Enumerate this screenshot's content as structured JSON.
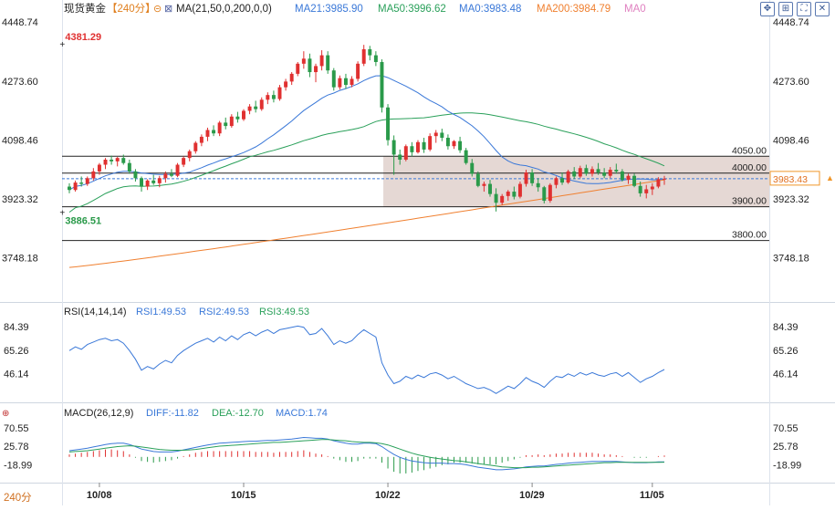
{
  "header": {
    "instrument": "现货黄金",
    "period": "【240分】",
    "ma_label": "MA(21,50,0,200,0,0)",
    "ma21": "MA21:3985.90",
    "ma50": "MA50:3996.62",
    "ma0": "MA0:3983.48",
    "ma200": "MA200:3984.79",
    "ma0b": "MA0"
  },
  "rsi_header": {
    "label": "RSI(14,14,14)",
    "rsi1": "RSI1:49.53",
    "rsi2": "RSI2:49.53",
    "rsi3": "RSI3:49.53"
  },
  "macd_header": {
    "label": "MACD(26,12,9)",
    "diff": "DIFF:-11.82",
    "dea": "DEA:-12.70",
    "macd": "MACD:1.74"
  },
  "bottom_left": "240分",
  "toolbar": {
    "items": [
      "crosshair-icon",
      "zoom-fit-icon",
      "expand-icon",
      "close-icon"
    ]
  },
  "colors": {
    "up": "#e03030",
    "down": "#2a9a4a",
    "ma21": "#3a78d8",
    "ma50": "#2aa05a",
    "ma200": "#f08030",
    "zone": "#dccbc6",
    "price_tag": "#f0962a",
    "peak_label": "#e03030",
    "trough_label": "#2a9a4a"
  },
  "chart_data": [
    {
      "type": "candlestick",
      "title": "现货黄金【240分】",
      "x_ticks": [
        "10/08",
        "10/15",
        "10/22",
        "10/29",
        "11/05"
      ],
      "y_ticks": [
        "4448.74",
        "4273.60",
        "4098.46",
        "3923.32",
        "3748.18"
      ],
      "ylim": [
        3620,
        4460
      ],
      "last_price": "3983.43",
      "peak": {
        "label": "4381.29",
        "value": 4381.29
      },
      "trough": {
        "label": "3886.51",
        "value": 3886.51
      },
      "levels": [
        {
          "label": "4050.00",
          "value": 4050
        },
        {
          "label": "4000.00",
          "value": 4000
        },
        {
          "label": "3900.00",
          "value": 3900
        },
        {
          "label": "3800.00",
          "value": 3800
        }
      ],
      "ohlc": [
        [
          3960,
          3970,
          3940,
          3950
        ],
        [
          3950,
          3978,
          3945,
          3972
        ],
        [
          3972,
          3990,
          3960,
          3968
        ],
        [
          3968,
          3990,
          3962,
          3985
        ],
        [
          3985,
          4015,
          3978,
          4005
        ],
        [
          4005,
          4030,
          3995,
          4025
        ],
        [
          4025,
          4045,
          4012,
          4040
        ],
        [
          4040,
          4052,
          4025,
          4035
        ],
        [
          4035,
          4048,
          4020,
          4045
        ],
        [
          4045,
          4055,
          4025,
          4030
        ],
        [
          4030,
          4040,
          3998,
          4005
        ],
        [
          4005,
          4012,
          3975,
          3985
        ],
        [
          3985,
          3990,
          3945,
          3960
        ],
        [
          3960,
          3982,
          3950,
          3978
        ],
        [
          3978,
          3995,
          3965,
          3970
        ],
        [
          3970,
          3992,
          3958,
          3985
        ],
        [
          3985,
          4005,
          3972,
          3998
        ],
        [
          3998,
          4012,
          3988,
          3992
        ],
        [
          3992,
          4030,
          3988,
          4025
        ],
        [
          4025,
          4050,
          4018,
          4045
        ],
        [
          4045,
          4070,
          4035,
          4065
        ],
        [
          4065,
          4095,
          4058,
          4090
        ],
        [
          4090,
          4115,
          4080,
          4108
        ],
        [
          4108,
          4135,
          4095,
          4128
        ],
        [
          4128,
          4142,
          4110,
          4118
        ],
        [
          4118,
          4155,
          4110,
          4150
        ],
        [
          4150,
          4165,
          4130,
          4140
        ],
        [
          4140,
          4175,
          4135,
          4168
        ],
        [
          4168,
          4182,
          4150,
          4160
        ],
        [
          4160,
          4190,
          4155,
          4185
        ],
        [
          4185,
          4205,
          4175,
          4198
        ],
        [
          4198,
          4215,
          4180,
          4190
        ],
        [
          4190,
          4225,
          4185,
          4218
        ],
        [
          4218,
          4240,
          4205,
          4232
        ],
        [
          4232,
          4245,
          4210,
          4220
        ],
        [
          4220,
          4262,
          4215,
          4255
        ],
        [
          4255,
          4280,
          4245,
          4272
        ],
        [
          4272,
          4300,
          4262,
          4295
        ],
        [
          4295,
          4330,
          4288,
          4325
        ],
        [
          4325,
          4362,
          4310,
          4340
        ],
        [
          4340,
          4355,
          4285,
          4300
        ],
        [
          4300,
          4325,
          4270,
          4318
        ],
        [
          4318,
          4365,
          4305,
          4350
        ],
        [
          4350,
          4362,
          4295,
          4305
        ],
        [
          4305,
          4312,
          4245,
          4255
        ],
        [
          4255,
          4290,
          4248,
          4282
        ],
        [
          4282,
          4295,
          4250,
          4262
        ],
        [
          4262,
          4288,
          4255,
          4280
        ],
        [
          4280,
          4332,
          4272,
          4325
        ],
        [
          4325,
          4381,
          4318,
          4368
        ],
        [
          4368,
          4378,
          4335,
          4350
        ],
        [
          4350,
          4362,
          4318,
          4330
        ],
        [
          4330,
          4338,
          4180,
          4195
        ],
        [
          4195,
          4205,
          4082,
          4098
        ],
        [
          4098,
          4112,
          3995,
          4055
        ],
        [
          4055,
          4070,
          4025,
          4040
        ],
        [
          4040,
          4085,
          4035,
          4080
        ],
        [
          4080,
          4092,
          4050,
          4062
        ],
        [
          4062,
          4098,
          4058,
          4092
        ],
        [
          4092,
          4105,
          4060,
          4070
        ],
        [
          4070,
          4118,
          4065,
          4110
        ],
        [
          4110,
          4128,
          4090,
          4120
        ],
        [
          4120,
          4132,
          4095,
          4105
        ],
        [
          4105,
          4115,
          4070,
          4080
        ],
        [
          4080,
          4098,
          4072,
          4095
        ],
        [
          4095,
          4108,
          4060,
          4068
        ],
        [
          4068,
          4075,
          4025,
          4030
        ],
        [
          4030,
          4042,
          3990,
          3998
        ],
        [
          3998,
          4005,
          3958,
          3962
        ],
        [
          3962,
          3975,
          3945,
          3968
        ],
        [
          3968,
          3980,
          3930,
          3938
        ],
        [
          3938,
          3955,
          3886,
          3912
        ],
        [
          3912,
          3938,
          3905,
          3932
        ],
        [
          3932,
          3950,
          3918,
          3945
        ],
        [
          3945,
          3960,
          3922,
          3930
        ],
        [
          3930,
          3975,
          3925,
          3968
        ],
        [
          3968,
          4010,
          3960,
          4002
        ],
        [
          4002,
          4012,
          3962,
          3970
        ],
        [
          3970,
          3985,
          3945,
          3958
        ],
        [
          3958,
          3962,
          3910,
          3918
        ],
        [
          3918,
          3970,
          3912,
          3965
        ],
        [
          3965,
          3990,
          3955,
          3985
        ],
        [
          3985,
          4002,
          3965,
          3972
        ],
        [
          3972,
          4010,
          3968,
          4005
        ],
        [
          4005,
          4018,
          3982,
          3990
        ],
        [
          3990,
          4022,
          3985,
          4015
        ],
        [
          4015,
          4025,
          3992,
          3998
        ],
        [
          3998,
          4020,
          3990,
          4012
        ],
        [
          4012,
          4030,
          3995,
          4002
        ],
        [
          4002,
          4015,
          3985,
          3992
        ],
        [
          3992,
          4018,
          3985,
          4010
        ],
        [
          4010,
          4028,
          3998,
          4005
        ],
        [
          4005,
          4012,
          3975,
          3980
        ],
        [
          3980,
          3998,
          3968,
          3992
        ],
        [
          3992,
          3999,
          3958,
          3962
        ],
        [
          3962,
          3975,
          3930,
          3940
        ],
        [
          3940,
          3965,
          3925,
          3952
        ],
        [
          3952,
          3970,
          3935,
          3960
        ],
        [
          3960,
          3988,
          3955,
          3982
        ],
        [
          3982,
          3992,
          3965,
          3983.43
        ]
      ]
    },
    {
      "type": "line",
      "title": "RSI(14,14,14)",
      "y_ticks": [
        "84.39",
        "65.26",
        "46.14"
      ],
      "ylim": [
        25,
        92
      ],
      "series": [
        {
          "name": "RSI1",
          "values": [
            65,
            68,
            66,
            70,
            72,
            74,
            75,
            73,
            74,
            71,
            65,
            58,
            49,
            52,
            50,
            54,
            57,
            55,
            61,
            65,
            68,
            71,
            73,
            75,
            72,
            76,
            73,
            77,
            74,
            78,
            80,
            77,
            80,
            82,
            79,
            82,
            83,
            84,
            85,
            84,
            78,
            79,
            83,
            77,
            70,
            73,
            71,
            73,
            78,
            82,
            79,
            76,
            55,
            45,
            38,
            40,
            44,
            42,
            45,
            43,
            46,
            47,
            45,
            42,
            44,
            41,
            38,
            36,
            34,
            35,
            33,
            30,
            33,
            36,
            34,
            38,
            43,
            40,
            38,
            35,
            40,
            44,
            43,
            46,
            44,
            47,
            45,
            47,
            45,
            44,
            46,
            47,
            44,
            47,
            43,
            39,
            42,
            44,
            47,
            49.53
          ]
        }
      ]
    },
    {
      "type": "line",
      "title": "MACD(26,12,9)",
      "y_ticks": [
        "70.55",
        "25.78",
        "-18.99"
      ],
      "ylim": [
        -60,
        90
      ],
      "series": [
        {
          "name": "DIFF",
          "values": [
            15,
            17,
            19,
            21,
            24,
            27,
            30,
            32,
            33,
            33,
            30,
            25,
            19,
            16,
            13,
            12,
            12,
            12,
            14,
            17,
            20,
            23,
            26,
            29,
            31,
            33,
            34,
            35,
            36,
            37,
            38,
            38,
            39,
            40,
            40,
            41,
            42,
            43,
            45,
            47,
            46,
            45,
            45,
            43,
            39,
            36,
            33,
            31,
            31,
            33,
            33,
            32,
            25,
            15,
            6,
            -1,
            -6,
            -10,
            -12,
            -14,
            -15,
            -15,
            -15,
            -16,
            -16,
            -17,
            -19,
            -22,
            -25,
            -27,
            -29,
            -31,
            -31,
            -30,
            -29,
            -27,
            -24,
            -23,
            -22,
            -22,
            -20,
            -18,
            -17,
            -15,
            -14,
            -13,
            -12,
            -11,
            -11,
            -11,
            -11,
            -11,
            -12,
            -13,
            -14,
            -14,
            -14,
            -13,
            -12,
            -11.82
          ]
        },
        {
          "name": "DEA",
          "values": [
            12,
            13,
            14,
            15,
            17,
            19,
            21,
            23,
            25,
            26,
            27,
            26,
            24,
            22,
            20,
            18,
            17,
            16,
            16,
            16,
            17,
            18,
            20,
            22,
            24,
            26,
            27,
            28,
            29,
            30,
            31,
            32,
            33,
            34,
            35,
            35,
            36,
            37,
            38,
            39,
            40,
            41,
            42,
            42,
            41,
            40,
            39,
            37,
            36,
            35,
            35,
            34,
            32,
            29,
            24,
            19,
            14,
            9,
            5,
            2,
            -1,
            -3,
            -5,
            -7,
            -9,
            -10,
            -12,
            -14,
            -16,
            -18,
            -20,
            -22,
            -24,
            -25,
            -26,
            -26,
            -26,
            -25,
            -25,
            -24,
            -23,
            -22,
            -21,
            -20,
            -19,
            -18,
            -17,
            -16,
            -15,
            -14,
            -14,
            -13,
            -13,
            -13,
            -13,
            -13,
            -13,
            -13,
            -13,
            -12.7
          ]
        },
        {
          "name": "MACD",
          "values": [
            3,
            4,
            5,
            6,
            7,
            8,
            9,
            9,
            8,
            7,
            3,
            -1,
            -5,
            -6,
            -7,
            -6,
            -5,
            -4,
            -2,
            1,
            3,
            5,
            6,
            7,
            7,
            7,
            7,
            7,
            7,
            7,
            7,
            6,
            6,
            6,
            5,
            6,
            6,
            6,
            7,
            8,
            6,
            4,
            3,
            1,
            -2,
            -4,
            -6,
            -6,
            -5,
            -2,
            -2,
            -2,
            -7,
            -14,
            -18,
            -20,
            -20,
            -19,
            -17,
            -16,
            -14,
            -12,
            -10,
            -9,
            -7,
            -7,
            -7,
            -8,
            -9,
            -9,
            -9,
            -9,
            -7,
            -5,
            -3,
            -1,
            2,
            2,
            3,
            2,
            3,
            4,
            4,
            5,
            5,
            5,
            5,
            5,
            4,
            3,
            3,
            2,
            1,
            0,
            -1,
            -1,
            -1,
            0,
            1,
            1.74
          ]
        }
      ]
    }
  ]
}
